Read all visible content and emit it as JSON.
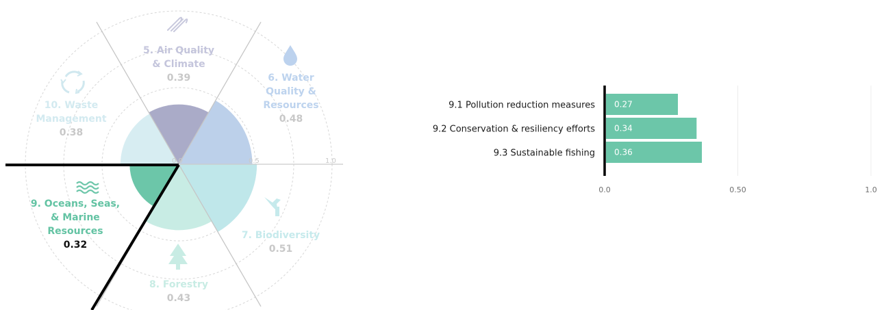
{
  "chart_data": [
    {
      "type": "polar-area",
      "radial_ticks": [
        "0.0",
        "0.5",
        "1.0"
      ],
      "rmax": 1.0,
      "highlighted": "9",
      "sectors": [
        {
          "id": "5",
          "name": "5. Air Quality & Climate",
          "lines": [
            "5. Air Quality",
            "& Climate"
          ],
          "value": 0.39,
          "value_label": "0.39",
          "color": "#aaabc8",
          "label_color": "#c4c5dc",
          "icon": "wind-icon"
        },
        {
          "id": "6",
          "name": "6. Water Quality & Resources",
          "lines": [
            "6. Water",
            "Quality &",
            "Resources"
          ],
          "value": 0.48,
          "value_label": "0.48",
          "color": "#bcd0ea",
          "label_color": "#bdd3ee",
          "icon": "water-drop-icon"
        },
        {
          "id": "7",
          "name": "7. Biodiversity",
          "lines": [
            "7. Biodiversity"
          ],
          "value": 0.51,
          "value_label": "0.51",
          "color": "#bfe7ea",
          "label_color": "#c6eaec",
          "icon": "bird-icon"
        },
        {
          "id": "8",
          "name": "8. Forestry",
          "lines": [
            "8. Forestry"
          ],
          "value": 0.43,
          "value_label": "0.43",
          "color": "#c8ece4",
          "label_color": "#c8ece4",
          "icon": "tree-icon"
        },
        {
          "id": "9",
          "name": "9. Oceans, Seas, & Marine Resources",
          "lines": [
            "9. Oceans, Seas,",
            "& Marine",
            "Resources"
          ],
          "value": 0.32,
          "value_label": "0.32",
          "color": "#6cc6a9",
          "label_color": "#63c3a3",
          "icon": "waves-icon"
        },
        {
          "id": "10",
          "name": "10. Waste Management",
          "lines": [
            "10. Waste",
            "Management"
          ],
          "value": 0.38,
          "value_label": "0.38",
          "color": "#d7edf2",
          "label_color": "#d3eaf0",
          "icon": "recycle-icon"
        }
      ]
    },
    {
      "type": "bar",
      "orientation": "horizontal",
      "categories": [
        "9.1 Pollution reduction measures",
        "9.2 Conservation & resiliency efforts",
        "9.3 Sustainable fishing"
      ],
      "values": [
        0.27,
        0.34,
        0.36
      ],
      "value_labels": [
        "0.27",
        "0.34",
        "0.36"
      ],
      "xlim": [
        0,
        1.0
      ],
      "xticks": [
        0,
        0.5,
        1.0
      ],
      "xtick_labels": [
        "0.0",
        "0.50",
        "1.0"
      ],
      "bar_color": "#6cc6a9",
      "grid": true
    }
  ]
}
